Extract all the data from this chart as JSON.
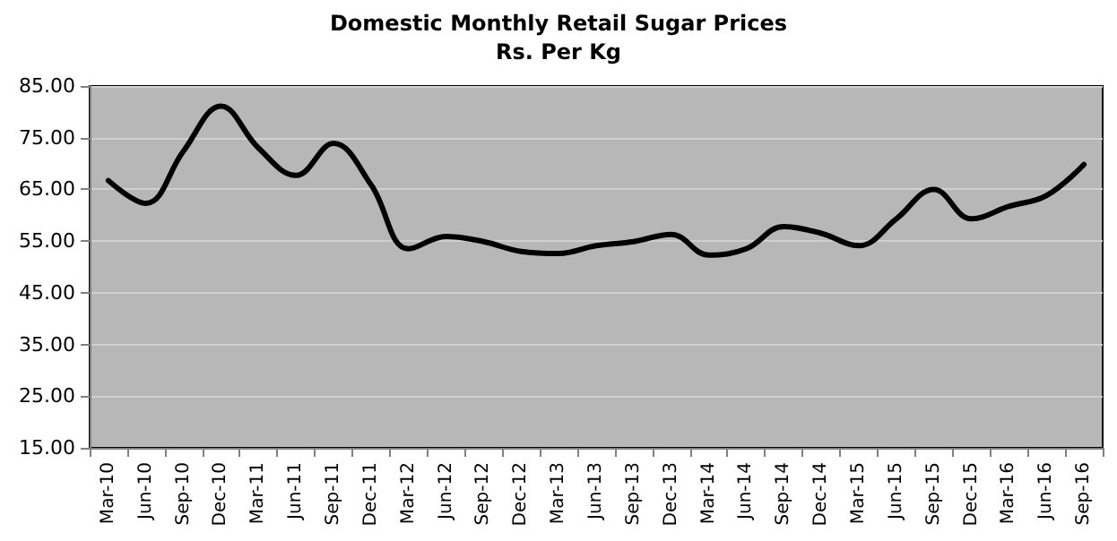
{
  "chart_data": {
    "type": "line",
    "title": "Domestic Monthly Retail Sugar Prices",
    "subtitle": "Rs. Per Kg",
    "categories": [
      "Mar-10",
      "Jun-10",
      "Sep-10",
      "Dec-10",
      "Mar-11",
      "Jun-11",
      "Sep-11",
      "Dec-11",
      "Mar-12",
      "Jun-12",
      "Sep-12",
      "Dec-12",
      "Mar-13",
      "Jun-13",
      "Sep-13",
      "Dec-13",
      "Mar-14",
      "Jun-14",
      "Sep-14",
      "Dec-14",
      "Mar-15",
      "Jun-15",
      "Sep-15",
      "Dec-15",
      "Mar-16",
      "Jun-16",
      "Sep-16"
    ],
    "series": [
      {
        "color": "#000000",
        "values": [
          66.7,
          62.3,
          72.4,
          81.1,
          73.0,
          67.7,
          73.9,
          65.9,
          53.5,
          55.9,
          54.9,
          53.0,
          52.6,
          54.1,
          54.9,
          56.3,
          52.3,
          53.5,
          57.8,
          56.5,
          54.1,
          59.3,
          65.0,
          59.3,
          61.7,
          63.8,
          69.8
        ]
      }
    ],
    "ylim": [
      15,
      85
    ],
    "yticks": [
      {
        "value": 15,
        "label": "15.00"
      },
      {
        "value": 25,
        "label": "25.00"
      },
      {
        "value": 35,
        "label": "35.00"
      },
      {
        "value": 45,
        "label": "45.00"
      },
      {
        "value": 55,
        "label": "55.00"
      },
      {
        "value": 65,
        "label": "65.00"
      },
      {
        "value": 75,
        "label": "75.00"
      },
      {
        "value": 85,
        "label": "85.00"
      }
    ],
    "grid": "y",
    "marker": "none",
    "line_style": "solid"
  }
}
